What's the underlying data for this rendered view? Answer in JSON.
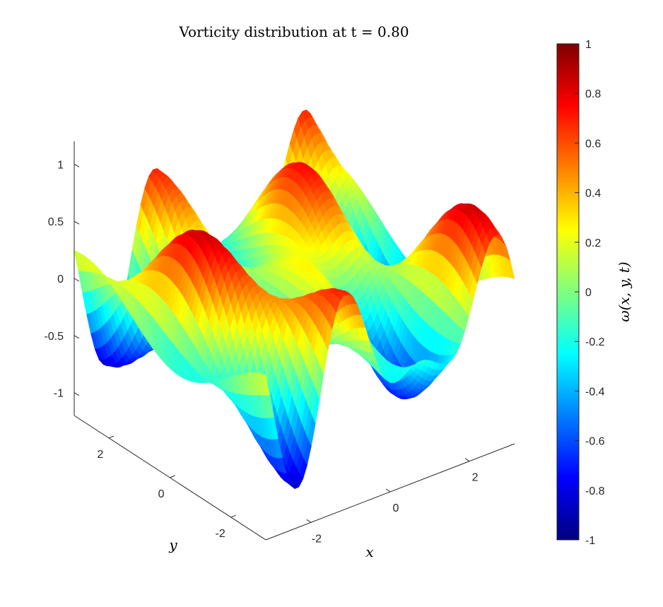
{
  "chart_data": {
    "type": "surface",
    "title": "Vorticity distribution at t = 0.80",
    "xlabel": "x",
    "ylabel": "y",
    "colorbar_label": "ω(x, y, t)",
    "colormap": "jet",
    "colormap_stops": [
      "#00007f",
      "#0000ff",
      "#007fff",
      "#00ffff",
      "#7fff7f",
      "#ffff00",
      "#ff7f00",
      "#ff0000",
      "#7f0000"
    ],
    "xlim": [
      -3.1416,
      3.1416
    ],
    "ylim": [
      -3.1416,
      3.1416
    ],
    "zlim": [
      -1.2,
      1.2
    ],
    "clim": [
      -1,
      1
    ],
    "x_ticks": [
      -2,
      0,
      2
    ],
    "y_ticks": [
      -2,
      0,
      2
    ],
    "z_ticks": [
      -1,
      -0.5,
      0,
      0.5,
      1
    ],
    "z_tick_labels": [
      "-1",
      "-0.5",
      "0",
      "0.5",
      "1"
    ],
    "colorbar_ticks": [
      -1,
      -0.8,
      -0.6,
      -0.4,
      -0.2,
      0,
      0.2,
      0.4,
      0.6,
      0.8,
      1
    ],
    "colorbar_tick_labels": [
      "-1",
      "-0.8",
      "-0.6",
      "-0.4",
      "-0.2",
      "0",
      "0.2",
      "0.4",
      "0.6",
      "0.8",
      "1"
    ],
    "grid": false
  }
}
